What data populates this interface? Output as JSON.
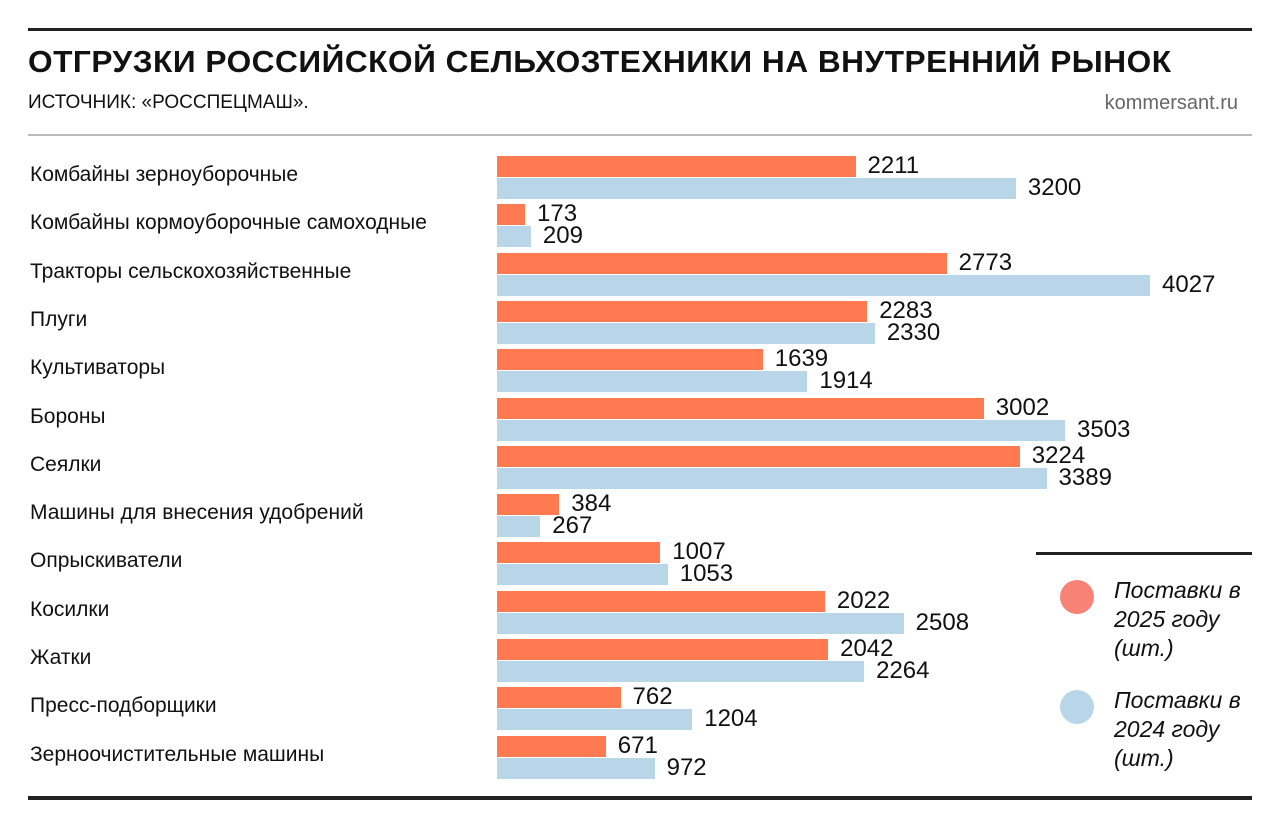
{
  "header": {
    "title": "ОТГРУЗКИ РОССИЙСКОЙ СЕЛЬХОЗТЕХНИКИ НА ВНУТРЕННИЙ РЫНОК",
    "source": "ИСТОЧНИК: «РОССПЕЦМАШ».",
    "site": "kommersant.ru"
  },
  "chart_data": {
    "type": "bar",
    "orientation": "horizontal",
    "categories": [
      "Комбайны зерноуборочные",
      "Комбайны кормоуборочные самоходные",
      "Тракторы сельскохозяйственные",
      "Плуги",
      "Культиваторы",
      "Бороны",
      "Сеялки",
      "Машины для внесения удобрений",
      "Опрыскиватели",
      "Косилки",
      "Жатки",
      "Пресс-подборщики",
      "Зерноочистительные машины"
    ],
    "series": [
      {
        "name": "Поставки в 2025 году (шт.)",
        "color": "#FF7A50",
        "legend_color": "#F98276",
        "values": [
          2211,
          173,
          2773,
          2283,
          1639,
          3002,
          3224,
          384,
          1007,
          2022,
          2042,
          762,
          671
        ]
      },
      {
        "name": "Поставки в 2024 году (шт.)",
        "color": "#B9D6E9",
        "legend_color": "#B9D6E9",
        "values": [
          3200,
          209,
          4027,
          2330,
          1914,
          3503,
          3389,
          267,
          1053,
          2508,
          2264,
          1204,
          972
        ]
      }
    ],
    "xlim": [
      0,
      4027
    ],
    "grid": false,
    "legend_placement": "bottom-right"
  }
}
